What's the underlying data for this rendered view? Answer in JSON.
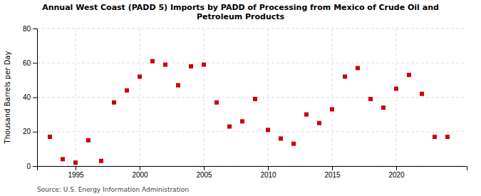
{
  "chart_data": {
    "type": "scatter",
    "title": "Annual West Coast (PADD 5) Imports by PADD of Processing from Mexico of Crude Oil and\nPetroleum Products",
    "ylabel": "Thousand Barrels per Day",
    "source": "Source: U.S. Energy Information Administration",
    "color": "#cc0000",
    "marker": "square",
    "grid": true,
    "xlim": [
      1992.0,
      2025.5
    ],
    "ylim": [
      0,
      80
    ],
    "xticks": [
      1995,
      2000,
      2005,
      2010,
      2015,
      2020
    ],
    "yticks": [
      0,
      20,
      40,
      60,
      80
    ],
    "x": [
      1993,
      1994,
      1995,
      1996,
      1997,
      1998,
      1999,
      2000,
      2001,
      2002,
      2003,
      2004,
      2005,
      2006,
      2007,
      2008,
      2009,
      2010,
      2011,
      2012,
      2013,
      2014,
      2015,
      2016,
      2017,
      2018,
      2019,
      2020,
      2021,
      2022,
      2023,
      2024
    ],
    "values": [
      17,
      4,
      2,
      15,
      3,
      37,
      44,
      52,
      61,
      59,
      47,
      58,
      59,
      37,
      23,
      26,
      39,
      21,
      16,
      13,
      30,
      25,
      33,
      52,
      57,
      39,
      34,
      45,
      53,
      42,
      17,
      17
    ]
  }
}
